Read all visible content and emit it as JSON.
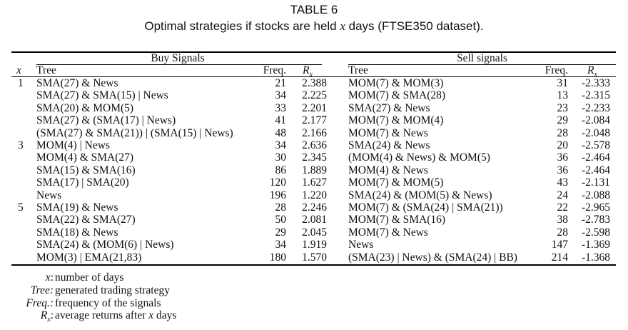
{
  "caption": {
    "label": "TABLE 6",
    "title_before": "Optimal strategies if stocks are held ",
    "title_var": "x",
    "title_after": " days (FTSE350 dataset)."
  },
  "table": {
    "group_headers": {
      "buy": "Buy Signals",
      "sell": "Sell signals"
    },
    "column_headers": {
      "x": "x",
      "buy_tree": "Tree",
      "buy_freq": "Freq.",
      "buy_r": "Rx",
      "sell_tree": "Tree",
      "sell_freq": "Freq.",
      "sell_r": "Rx"
    },
    "rows": [
      {
        "x": "1",
        "buy_tree": "SMA(27) & News",
        "buy_freq": "21",
        "buy_r": "2.388",
        "sell_tree": "MOM(7) & MOM(3)",
        "sell_freq": "31",
        "sell_r": "-2.333"
      },
      {
        "x": "",
        "buy_tree": "SMA(27) & SMA(15) | News",
        "buy_freq": "34",
        "buy_r": "2.225",
        "sell_tree": "MOM(7) & SMA(28)",
        "sell_freq": "13",
        "sell_r": "-2.315"
      },
      {
        "x": "",
        "buy_tree": "SMA(20) & MOM(5)",
        "buy_freq": "33",
        "buy_r": "2.201",
        "sell_tree": "SMA(27) & News",
        "sell_freq": "23",
        "sell_r": "-2.233"
      },
      {
        "x": "",
        "buy_tree": "SMA(27) & (SMA(17) | News)",
        "buy_freq": "41",
        "buy_r": "2.177",
        "sell_tree": "MOM(7) & MOM(4)",
        "sell_freq": "29",
        "sell_r": "-2.084"
      },
      {
        "x": "",
        "buy_tree": "(SMA(27) & SMA(21)) | (SMA(15) | News)",
        "buy_freq": "48",
        "buy_r": "2.166",
        "sell_tree": "MOM(7) & News",
        "sell_freq": "28",
        "sell_r": "-2.048"
      },
      {
        "x": "3",
        "buy_tree": "MOM(4) | News",
        "buy_freq": "34",
        "buy_r": "2.636",
        "sell_tree": "SMA(24) & News",
        "sell_freq": "20",
        "sell_r": "-2.578"
      },
      {
        "x": "",
        "buy_tree": "MOM(4) & SMA(27)",
        "buy_freq": "30",
        "buy_r": "2.345",
        "sell_tree": "(MOM(4) & News) & MOM(5)",
        "sell_freq": "36",
        "sell_r": "-2.464"
      },
      {
        "x": "",
        "buy_tree": "SMA(15) & SMA(16)",
        "buy_freq": "86",
        "buy_r": "1.889",
        "sell_tree": "MOM(4) & News",
        "sell_freq": "36",
        "sell_r": "-2.464"
      },
      {
        "x": "",
        "buy_tree": "SMA(17) | SMA(20)",
        "buy_freq": "120",
        "buy_r": "1.627",
        "sell_tree": "MOM(7) & MOM(5)",
        "sell_freq": "43",
        "sell_r": "-2.131"
      },
      {
        "x": "",
        "buy_tree": "News",
        "buy_freq": "196",
        "buy_r": "1.220",
        "sell_tree": "SMA(24) & (MOM(5) & News)",
        "sell_freq": "24",
        "sell_r": "-2.088"
      },
      {
        "x": "5",
        "buy_tree": "SMA(19) & News",
        "buy_freq": "28",
        "buy_r": "2.246",
        "sell_tree": "MOM(7) & (SMA(24) | SMA(21))",
        "sell_freq": "22",
        "sell_r": "-2.965"
      },
      {
        "x": "",
        "buy_tree": "SMA(22) & SMA(27)",
        "buy_freq": "50",
        "buy_r": "2.081",
        "sell_tree": "MOM(7) & SMA(16)",
        "sell_freq": "38",
        "sell_r": "-2.783"
      },
      {
        "x": "",
        "buy_tree": "SMA(18) & News",
        "buy_freq": "29",
        "buy_r": "2.045",
        "sell_tree": "MOM(7) & News",
        "sell_freq": "28",
        "sell_r": "-2.598"
      },
      {
        "x": "",
        "buy_tree": "SMA(24) & (MOM(6) | News)",
        "buy_freq": "34",
        "buy_r": "1.919",
        "sell_tree": "News",
        "sell_freq": "147",
        "sell_r": "-1.369"
      },
      {
        "x": "",
        "buy_tree": "MOM(3) | EMA(21,83)",
        "buy_freq": "180",
        "buy_r": "1.570",
        "sell_tree": "(SMA(23) | News) & (SMA(24) | BB)",
        "sell_freq": "214",
        "sell_r": "-1.368"
      }
    ]
  },
  "legend": [
    {
      "key": "x:",
      "desc": "number of days"
    },
    {
      "key": "Tree:",
      "desc": "generated trading strategy"
    },
    {
      "key": "Freq.:",
      "desc": "frequency of the signals"
    },
    {
      "key": "Rx:",
      "desc": "average returns after x days",
      "desc_before": "average returns after ",
      "desc_var": "x",
      "desc_after": " days"
    }
  ]
}
